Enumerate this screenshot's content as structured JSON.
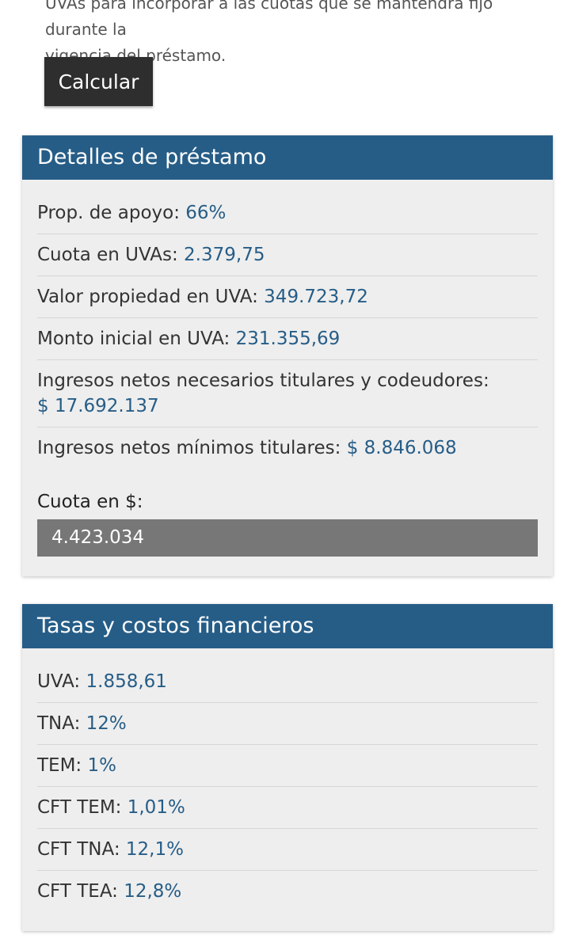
{
  "intro": {
    "line1": "UVAs para incorporar a las cuotas que se mantendrá fijo durante la",
    "line2": "vigencia del préstamo."
  },
  "calculate_button": "Calcular",
  "loan_details": {
    "title": "Detalles de préstamo",
    "rows": [
      {
        "label": "Prop. de apoyo:",
        "value": "66%"
      },
      {
        "label": "Cuota en UVAs:",
        "value": "2.379,75"
      },
      {
        "label": "Valor propiedad en UVA:",
        "value": "349.723,72"
      },
      {
        "label": "Monto inicial en UVA:",
        "value": "231.355,69"
      },
      {
        "label": "Ingresos netos necesarios titulares y codeudores:",
        "value": "$ 17.692.137"
      },
      {
        "label": "Ingresos netos mínimos titulares:",
        "value": "$ 8.846.068"
      }
    ],
    "cuota_label": "Cuota en $:",
    "cuota_value": "4.423.034"
  },
  "rates": {
    "title": "Tasas y costos financieros",
    "rows": [
      {
        "label": "UVA:",
        "value": "1.858,61"
      },
      {
        "label": "TNA:",
        "value": "12%"
      },
      {
        "label": "TEM:",
        "value": "1%"
      },
      {
        "label": "CFT TEM:",
        "value": "1,01%"
      },
      {
        "label": "CFT TNA:",
        "value": "12,1%"
      },
      {
        "label": "CFT TEA:",
        "value": "12,8%"
      }
    ]
  },
  "colors": {
    "header_blue": "#265d87",
    "value_blue": "#265d87",
    "button_dark": "#2e2e2e",
    "result_box": "#777777"
  }
}
